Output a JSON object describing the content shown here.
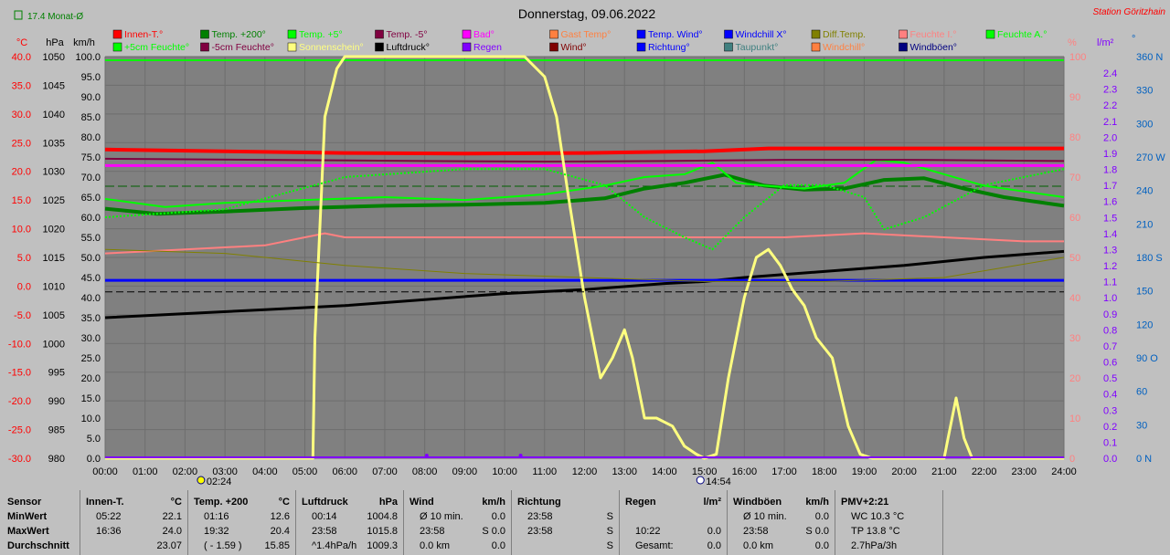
{
  "title": "Donnerstag, 09.06.2022",
  "station": "Station Göritzhain",
  "month_avg_label": "17.4 Monat-Ø",
  "colors": {
    "plot_bg": "#808080",
    "page_bg": "#c0c0c0",
    "red": "#ff0000",
    "yellow_sun": "#ffff80",
    "green": "#00ff00",
    "blue": "#0000ff",
    "dark_green": "#008000",
    "purple": "#8000ff",
    "pink": "#ff8080",
    "dark_red": "#800000",
    "maroon": "#800040",
    "black": "#000000",
    "olive": "#808000",
    "magenta": "#ff00ff",
    "orange": "#ff8040",
    "teal_gray": "#408080"
  },
  "legend": [
    {
      "label": "Innen-T.°",
      "color": "#ff0000"
    },
    {
      "label": "Temp. +200°",
      "color": "#008000"
    },
    {
      "label": "Temp. +5°",
      "color": "#00ff00"
    },
    {
      "label": "Temp. -5°",
      "color": "#800040"
    },
    {
      "label": "Bad°",
      "color": "#ff00ff"
    },
    {
      "label": "Gast Temp°",
      "color": "#ff8040"
    },
    {
      "label": "Temp. Wind°",
      "color": "#0000ff"
    },
    {
      "label": "Windchill X°",
      "color": "#0000ff"
    },
    {
      "label": "Diff.Temp.",
      "color": "#808000"
    },
    {
      "label": "Feuchte I.°",
      "color": "#ff8080"
    },
    {
      "label": "Feuchte A.°",
      "color": "#00ff00"
    },
    {
      "label": "+5cm Feuchte°",
      "color": "#00ff00"
    },
    {
      "label": "-5cm Feuchte°",
      "color": "#800040"
    },
    {
      "label": "Sonnenschein°",
      "color": "#ffff80"
    },
    {
      "label": "Luftdruck°",
      "color": "#000000"
    },
    {
      "label": "Regen",
      "color": "#8000ff"
    },
    {
      "label": "Wind°",
      "color": "#800000"
    },
    {
      "label": "Richtung°",
      "color": "#0000ff"
    },
    {
      "label": "Taupunkt°",
      "color": "#408080"
    },
    {
      "label": "Windchill°",
      "color": "#ff8040"
    },
    {
      "label": "Windböen°",
      "color": "#000080"
    }
  ],
  "axes": {
    "temp_label": "°C",
    "hpa_label": "hPa",
    "kmh_label": "km/h",
    "pct_label": "%",
    "rain_label": "l/m²",
    "dir_label": "°",
    "temp_ticks": [
      "40.0",
      "35.0",
      "30.0",
      "25.0",
      "20.0",
      "15.0",
      "10.0",
      "5.0",
      "0.0",
      "-5.0",
      "-10.0",
      "-15.0",
      "-20.0",
      "-25.0",
      "-30.0"
    ],
    "hpa_ticks": [
      "1050",
      "1045",
      "1040",
      "1035",
      "1030",
      "1025",
      "1020",
      "1015",
      "1010",
      "1005",
      "1000",
      "995",
      "990",
      "985",
      "980"
    ],
    "kmh_ticks": [
      "100.0",
      "95.0",
      "90.0",
      "85.0",
      "80.0",
      "75.0",
      "70.0",
      "65.0",
      "60.0",
      "55.0",
      "50.0",
      "45.0",
      "40.0",
      "35.0",
      "30.0",
      "25.0",
      "20.0",
      "15.0",
      "10.0",
      "5.0",
      "0.0"
    ],
    "pct_ticks": [
      "100",
      "90",
      "80",
      "70",
      "60",
      "50",
      "40",
      "30",
      "20",
      "10",
      "0"
    ],
    "rain_ticks": [
      "2.4",
      "2.3",
      "2.2",
      "2.1",
      "2.0",
      "1.9",
      "1.8",
      "1.7",
      "1.6",
      "1.5",
      "1.4",
      "1.3",
      "1.2",
      "1.1",
      "1.0",
      "0.9",
      "0.8",
      "0.7",
      "0.6",
      "0.5",
      "0.4",
      "0.3",
      "0.2",
      "0.1",
      "0.0"
    ],
    "dir_ticks": [
      "360 N",
      "330",
      "300",
      "270 W",
      "240",
      "210",
      "180 S",
      "150",
      "120",
      "90 O",
      "60",
      "30",
      "0 N"
    ],
    "time_ticks": [
      "00:00",
      "01:00",
      "02:00",
      "03:00",
      "04:00",
      "05:00",
      "06:00",
      "07:00",
      "08:00",
      "09:00",
      "10:00",
      "11:00",
      "12:00",
      "13:00",
      "14:00",
      "15:00",
      "16:00",
      "17:00",
      "18:00",
      "19:00",
      "20:00",
      "21:00",
      "22:00",
      "23:00",
      "24:00"
    ],
    "sunrise": "02:24",
    "sunset": "14:54"
  },
  "chart_data": {
    "type": "line",
    "x_unit": "hour",
    "xlim": [
      0,
      24
    ],
    "temp_ylim": [
      -30,
      40
    ],
    "kmh_ylim": [
      0,
      100
    ],
    "pct_ylim": [
      0,
      100
    ],
    "series": [
      {
        "name": "Innen-T.°",
        "axis": "temp",
        "color": "#ff0000",
        "width": 4,
        "x": [
          0,
          3,
          6,
          9,
          12,
          15,
          16.6,
          20,
          24
        ],
        "y": [
          23.8,
          23.5,
          23.2,
          23.1,
          23.2,
          23.5,
          24.0,
          24.0,
          24.0
        ]
      },
      {
        "name": "Temp. +200°",
        "axis": "temp",
        "color": "#008000",
        "width": 4,
        "x": [
          0,
          1.3,
          3,
          5,
          7,
          9,
          11,
          12.5,
          13.5,
          14.5,
          15.5,
          16.5,
          17.5,
          18.5,
          19.5,
          20.5,
          21.5,
          22.5,
          24
        ],
        "y": [
          13.5,
          12.6,
          13.0,
          13.6,
          14.0,
          14.2,
          14.5,
          15.3,
          17.0,
          18.0,
          19.4,
          17.5,
          16.8,
          17.0,
          18.5,
          18.8,
          17.0,
          15.5,
          14.0
        ]
      },
      {
        "name": "Temp. +5°",
        "axis": "temp",
        "color": "#00ff00",
        "width": 2,
        "x": [
          0,
          1.5,
          3,
          5,
          7,
          9,
          11,
          12.5,
          13.5,
          14.5,
          15.2,
          15.8,
          16.5,
          17.5,
          18.5,
          19.3,
          20,
          21,
          22,
          23,
          24
        ],
        "y": [
          15.2,
          13.8,
          14.5,
          15.0,
          15.5,
          15.0,
          16.0,
          17.5,
          19.0,
          19.5,
          21.5,
          18.0,
          17.5,
          17.0,
          18.0,
          22.0,
          21.5,
          19.5,
          17.5,
          16.5,
          15.5
        ]
      },
      {
        "name": "Temp. -5°",
        "axis": "temp",
        "color": "#800040",
        "width": 2,
        "x": [
          0,
          4,
          8,
          11,
          14,
          17,
          20,
          24
        ],
        "y": [
          22.2,
          22.0,
          21.8,
          21.7,
          21.8,
          22.0,
          22.0,
          21.8
        ]
      },
      {
        "name": "Bad°",
        "axis": "temp",
        "color": "#ff00ff",
        "width": 3,
        "x": [
          0,
          24
        ],
        "y": [
          21.0,
          21.0
        ]
      },
      {
        "name": "Feuchte I.°",
        "axis": "pct",
        "color": "#ff8080",
        "width": 2,
        "x": [
          0,
          2,
          4,
          5,
          5.5,
          6,
          8,
          11,
          13,
          15,
          17,
          19,
          21,
          23,
          24
        ],
        "y": [
          51,
          52,
          53,
          55,
          56,
          55,
          55,
          55,
          55,
          55,
          55,
          56,
          55,
          54,
          54
        ]
      },
      {
        "name": "Luftdruck°",
        "axis": "kmh",
        "color": "#000000",
        "width": 3,
        "x": [
          0,
          2,
          4,
          6,
          8,
          10,
          12,
          14,
          15,
          16,
          18,
          20,
          22,
          24
        ],
        "y": [
          35.0,
          36.0,
          37.0,
          38.0,
          39.5,
          41.0,
          42.0,
          43.5,
          44.0,
          45.0,
          46.5,
          48.0,
          50.0,
          51.5
        ]
      },
      {
        "name": "Windchill X°",
        "axis": "temp",
        "color": "#0000ff",
        "width": 3,
        "x": [
          0,
          24
        ],
        "y": [
          1.0,
          1.0
        ]
      },
      {
        "name": "Sonnenschein°",
        "axis": "kmh",
        "color": "#ffff80",
        "width": 3,
        "x": [
          0,
          5.2,
          5.25,
          5.5,
          5.8,
          6.0,
          6.5,
          8,
          10.5,
          11.0,
          11.3,
          11.6,
          12.0,
          12.4,
          12.7,
          13.0,
          13.2,
          13.5,
          13.8,
          14.2,
          14.5,
          14.8,
          15.0,
          15.3,
          15.6,
          16.0,
          16.3,
          16.6,
          16.9,
          17.2,
          17.5,
          17.8,
          18.2,
          18.6,
          18.9,
          19.2,
          20.0,
          21.0,
          21.1,
          21.3,
          21.5,
          21.7,
          22,
          24
        ],
        "y": [
          0,
          0,
          30,
          85,
          97,
          100,
          100,
          100,
          100,
          95,
          85,
          65,
          40,
          20,
          25,
          32,
          25,
          10,
          10,
          8,
          3,
          1,
          0,
          1,
          20,
          40,
          50,
          52,
          48,
          42,
          38,
          30,
          25,
          8,
          1,
          0,
          0,
          0,
          5,
          15,
          5,
          0,
          0,
          0
        ]
      },
      {
        "name": "Luftdruck°",
        "axis": "temp",
        "color": "#000000",
        "width": 1,
        "dash": "8,4",
        "x": [
          0,
          24
        ],
        "y": [
          -1.0,
          -1.0
        ]
      },
      {
        "name": "Feuchte A.°",
        "axis": "pct",
        "color": "#00ff00",
        "width": 2,
        "dash": "2,2",
        "x": [
          0,
          3,
          6,
          9,
          11,
          12.5,
          13.5,
          14.5,
          15.2,
          16,
          17,
          18,
          19,
          19.5,
          20.5,
          22,
          24
        ],
        "y": [
          60,
          62,
          70,
          72,
          72,
          68,
          60,
          55,
          52,
          60,
          68,
          68,
          65,
          57,
          60,
          68,
          72
        ]
      },
      {
        "name": "Diff.Temp.",
        "axis": "kmh",
        "color": "#808000",
        "width": 1,
        "x": [
          0,
          3,
          6,
          9,
          12,
          15,
          18,
          21,
          24
        ],
        "y": [
          52,
          51,
          48,
          46,
          45,
          44,
          44,
          45,
          50
        ]
      }
    ]
  },
  "stats": {
    "row_labels": [
      "Sensor",
      "MinWert",
      "MaxWert",
      "Durchschnitt"
    ],
    "cols": [
      {
        "header": "Innen-T.",
        "unit": "°C",
        "rows": [
          [
            "05:22",
            "22.1"
          ],
          [
            "16:36",
            "24.0"
          ],
          [
            "",
            "23.07"
          ]
        ]
      },
      {
        "header": "Temp. +200",
        "unit": "°C",
        "rows": [
          [
            "01:16",
            "12.6"
          ],
          [
            "19:32",
            "20.4"
          ],
          [
            "( - 1.59 )",
            "15.85"
          ]
        ]
      },
      {
        "header": "Luftdruck",
        "unit": "hPa",
        "rows": [
          [
            "00:14",
            "1004.8"
          ],
          [
            "23:58",
            "1015.8"
          ],
          [
            "^1.4hPa/h",
            "1009.3"
          ]
        ]
      },
      {
        "header": "Wind",
        "unit": "km/h",
        "rows": [
          [
            "Ø 10 min.",
            "0.0"
          ],
          [
            "23:58",
            "S 0.0"
          ],
          [
            "0.0 km",
            "0.0"
          ]
        ]
      },
      {
        "header": "Richtung",
        "unit": "",
        "rows": [
          [
            "23:58",
            "S"
          ],
          [
            "23:58",
            "S"
          ],
          [
            "",
            "S"
          ]
        ]
      },
      {
        "header": "Regen",
        "unit": "l/m²",
        "rows": [
          [
            "",
            ""
          ],
          [
            "10:22",
            "0.0"
          ],
          [
            "Gesamt:",
            "0.0"
          ]
        ]
      },
      {
        "header": "Windböen",
        "unit": "km/h",
        "rows": [
          [
            "Ø 10 min.",
            "0.0"
          ],
          [
            "23:58",
            "S 0.0"
          ],
          [
            "0.0 km",
            "0.0"
          ]
        ]
      },
      {
        "header": "PMV+2:21",
        "unit": "",
        "rows": [
          [
            "WC 10.3 °C",
            ""
          ],
          [
            "TP 13.8 °C",
            ""
          ],
          [
            "2.7hPa/3h",
            ""
          ]
        ]
      }
    ]
  }
}
